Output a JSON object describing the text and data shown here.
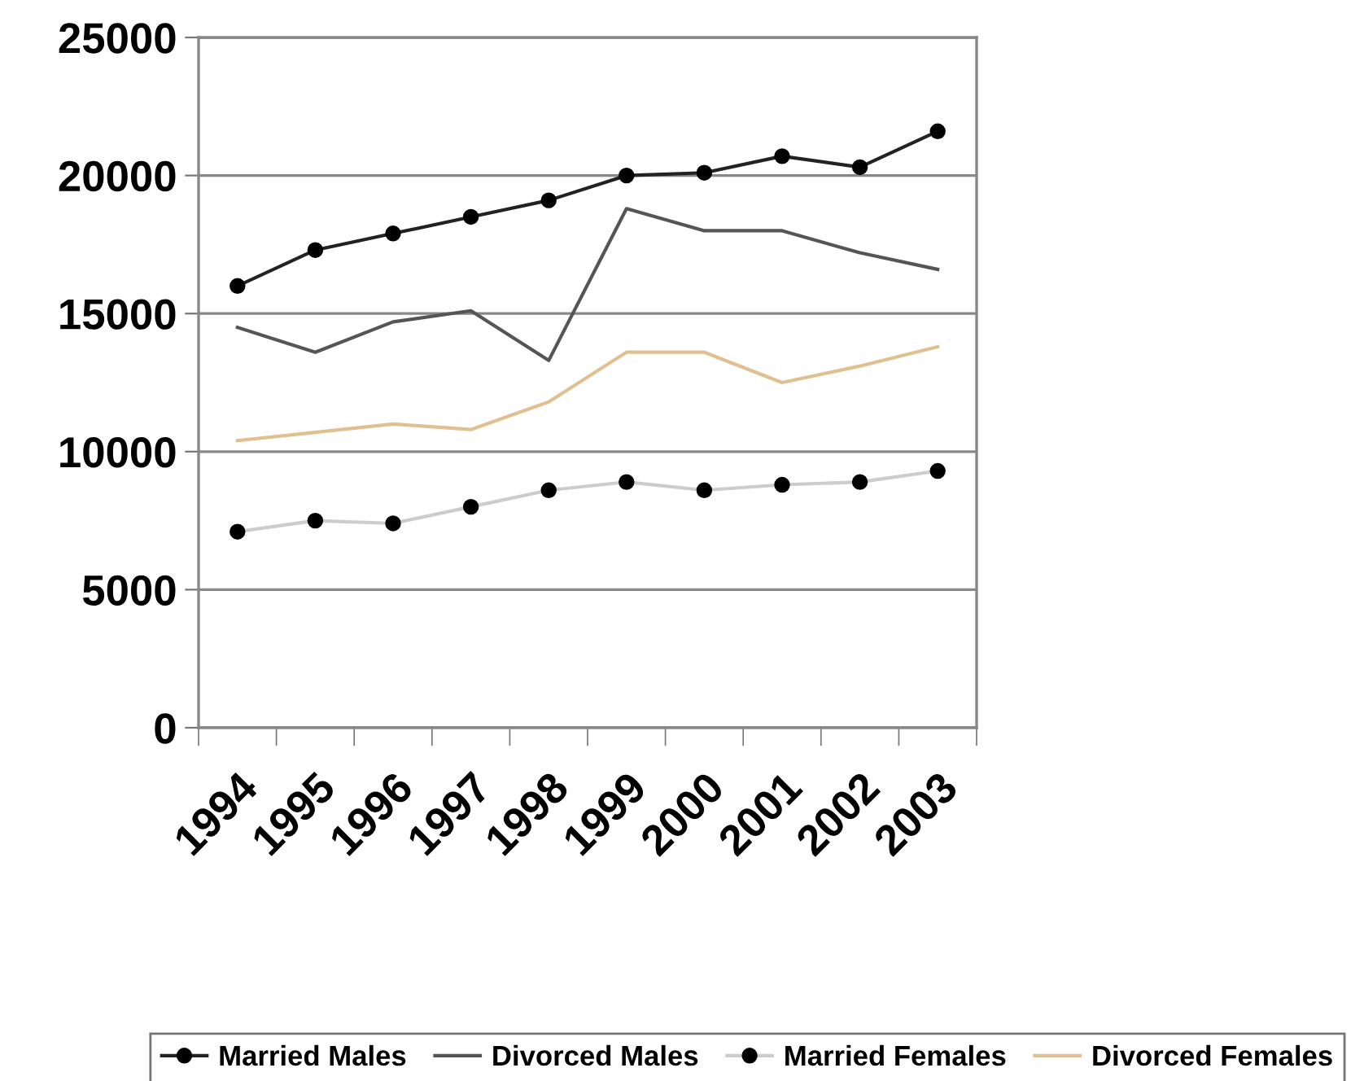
{
  "chart_data": {
    "type": "line",
    "categories": [
      "1994",
      "1995",
      "1996",
      "1997",
      "1998",
      "1999",
      "2000",
      "2001",
      "2002",
      "2003"
    ],
    "series": [
      {
        "name": "Married Males",
        "color": "#222222",
        "marker": "circle",
        "values": [
          16000,
          17300,
          17900,
          18500,
          19100,
          20000,
          20100,
          20700,
          20300,
          21600
        ]
      },
      {
        "name": "Divorced Males",
        "color": "#555555",
        "marker": "none",
        "values": [
          14500,
          13600,
          14700,
          15100,
          13300,
          18800,
          18000,
          18000,
          17200,
          16600
        ]
      },
      {
        "name": "Married Females",
        "color": "#cccccc",
        "marker": "circle",
        "values": [
          7100,
          7500,
          7400,
          8000,
          8600,
          8900,
          8600,
          8800,
          8900,
          9300
        ]
      },
      {
        "name": "Divorced Females",
        "color": "#e0c090",
        "marker": "none",
        "values": [
          10400,
          10700,
          11000,
          10800,
          11800,
          13600,
          13600,
          12500,
          13100,
          13800
        ]
      }
    ],
    "ylim": [
      0,
      25000
    ],
    "yticks": [
      0,
      5000,
      10000,
      15000,
      20000,
      25000
    ],
    "grid": "y",
    "legend": "bottom"
  }
}
